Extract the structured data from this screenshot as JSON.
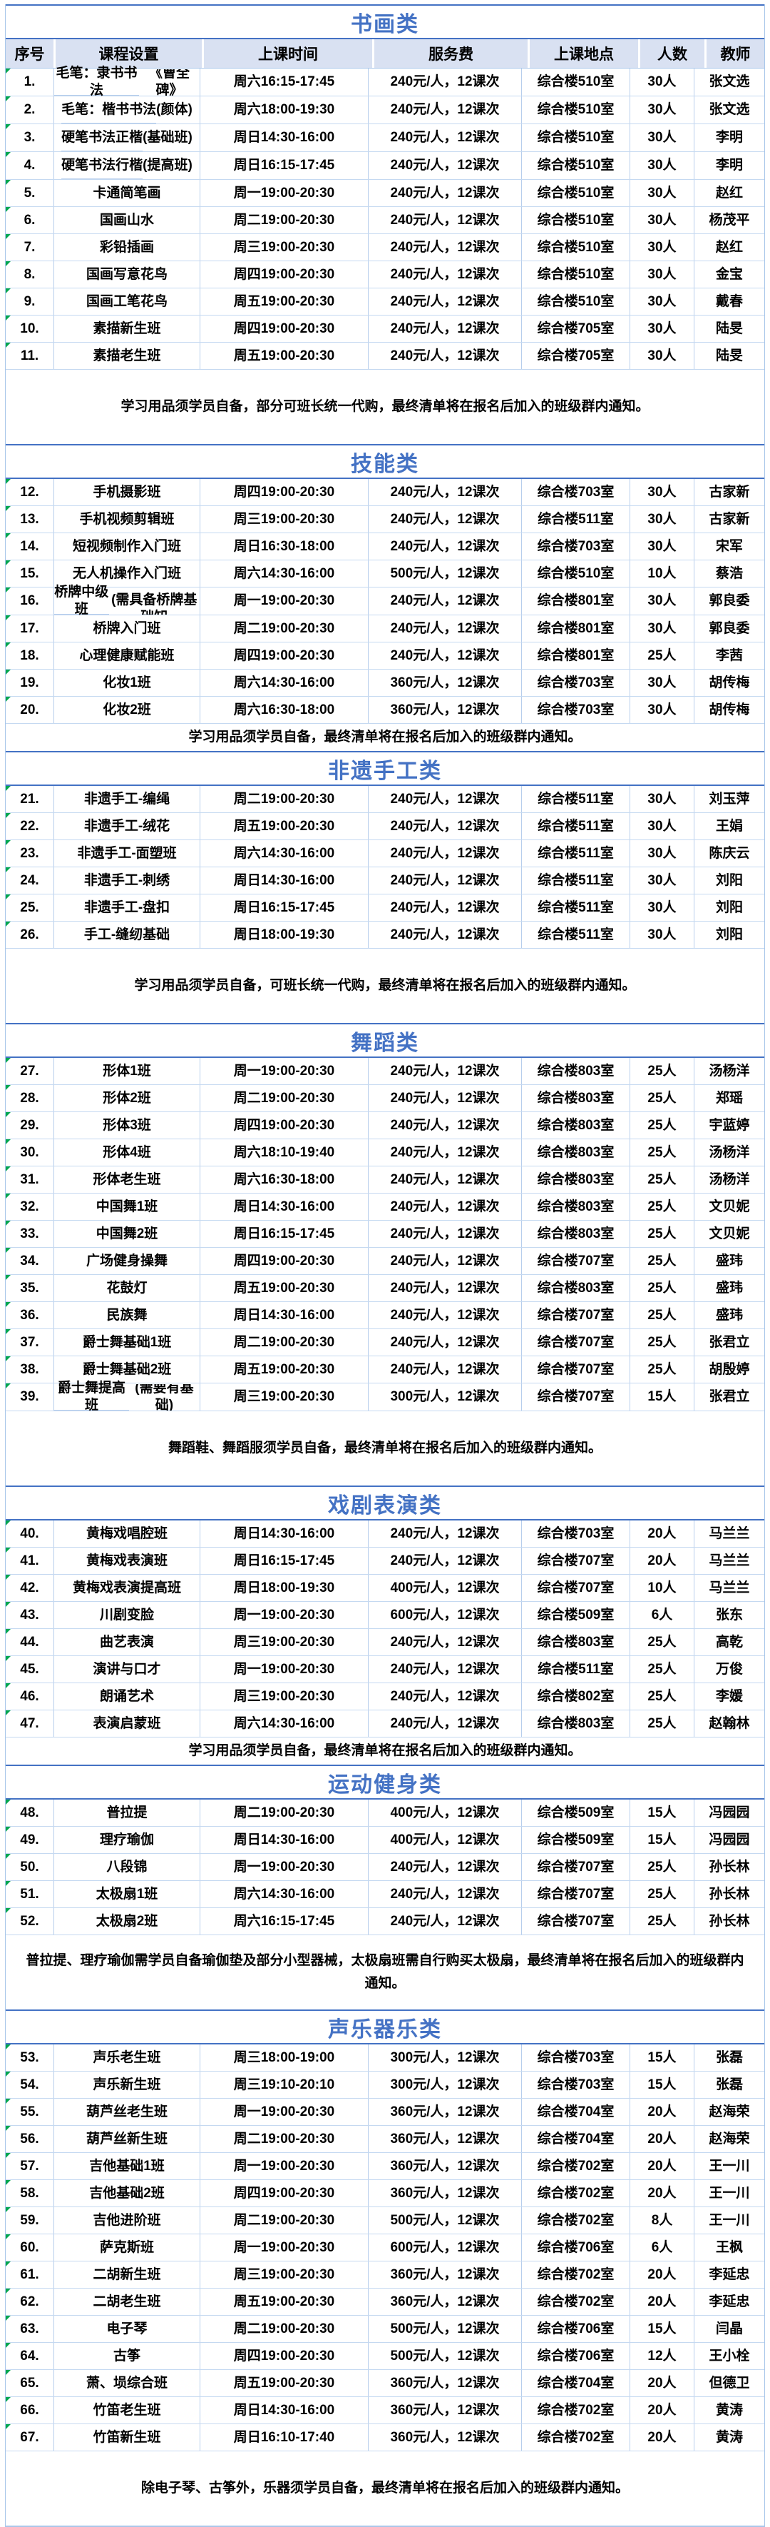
{
  "colors": {
    "accent_blue": "#4472C4",
    "header_bg": "#D9E1F2",
    "grid_line": "#A9C7EA",
    "corner_marker_green": "#00A650"
  },
  "columns": [
    "序号",
    "课程设置",
    "上课时间",
    "服务费",
    "上课地点",
    "人数",
    "教师"
  ],
  "sections": [
    {
      "title": "书画类",
      "show_header": true,
      "note_size": "tall",
      "note": "学习用品须学员自备，部分可班长统一代购，最终清单将在报名后加入的班级群内通知。",
      "rows": [
        {
          "no": "1.",
          "course_lines": [
            "毛笔：隶书书法",
            "《曹全碑》"
          ],
          "time": "周六16:15-17:45",
          "fee": "240元/人，12课次",
          "location": "综合楼510室",
          "capacity": "30人",
          "teacher": "张文选"
        },
        {
          "no": "2.",
          "course_lines": [
            "毛笔：楷书书法",
            "(颜体)"
          ],
          "time": "周六18:00-19:30",
          "fee": "240元/人，12课次",
          "location": "综合楼510室",
          "capacity": "30人",
          "teacher": "张文选"
        },
        {
          "no": "3.",
          "course_lines": [
            "硬笔书法正楷",
            "(基础班)"
          ],
          "time": "周日14:30-16:00",
          "fee": "240元/人，12课次",
          "location": "综合楼510室",
          "capacity": "30人",
          "teacher": "李明"
        },
        {
          "no": "4.",
          "course_lines": [
            "硬笔书法行楷",
            "(提高班)"
          ],
          "time": "周日16:15-17:45",
          "fee": "240元/人，12课次",
          "location": "综合楼510室",
          "capacity": "30人",
          "teacher": "李明"
        },
        {
          "no": "5.",
          "course_lines": [
            "卡通简笔画"
          ],
          "time": "周一19:00-20:30",
          "fee": "240元/人，12课次",
          "location": "综合楼510室",
          "capacity": "30人",
          "teacher": "赵红"
        },
        {
          "no": "6.",
          "course_lines": [
            "国画山水"
          ],
          "time": "周二19:00-20:30",
          "fee": "240元/人，12课次",
          "location": "综合楼510室",
          "capacity": "30人",
          "teacher": "杨茂平"
        },
        {
          "no": "7.",
          "course_lines": [
            "彩铅插画"
          ],
          "time": "周三19:00-20:30",
          "fee": "240元/人，12课次",
          "location": "综合楼510室",
          "capacity": "30人",
          "teacher": "赵红"
        },
        {
          "no": "8.",
          "course_lines": [
            "国画写意花鸟"
          ],
          "time": "周四19:00-20:30",
          "fee": "240元/人，12课次",
          "location": "综合楼510室",
          "capacity": "30人",
          "teacher": "金宝"
        },
        {
          "no": "9.",
          "course_lines": [
            "国画工笔花鸟"
          ],
          "time": "周五19:00-20:30",
          "fee": "240元/人，12课次",
          "location": "综合楼510室",
          "capacity": "30人",
          "teacher": "戴春"
        },
        {
          "no": "10.",
          "course_lines": [
            "素描新生班"
          ],
          "time": "周四19:00-20:30",
          "fee": "240元/人，12课次",
          "location": "综合楼705室",
          "capacity": "30人",
          "teacher": "陆旻"
        },
        {
          "no": "11.",
          "course_lines": [
            "素描老生班"
          ],
          "time": "周五19:00-20:30",
          "fee": "240元/人，12课次",
          "location": "综合楼705室",
          "capacity": "30人",
          "teacher": "陆旻"
        }
      ]
    },
    {
      "title": "技能类",
      "show_header": false,
      "note_size": "short",
      "note": "学习用品须学员自备，最终清单将在报名后加入的班级群内通知。",
      "rows": [
        {
          "no": "12.",
          "course_lines": [
            "手机摄影班"
          ],
          "time": "周四19:00-20:30",
          "fee": "240元/人，12课次",
          "location": "综合楼703室",
          "capacity": "30人",
          "teacher": "古家新"
        },
        {
          "no": "13.",
          "course_lines": [
            "手机视频剪辑班"
          ],
          "time": "周三19:00-20:30",
          "fee": "240元/人，12课次",
          "location": "综合楼511室",
          "capacity": "30人",
          "teacher": "古家新"
        },
        {
          "no": "14.",
          "course_lines": [
            "短视频制作入门班"
          ],
          "time": "周日16:30-18:00",
          "fee": "240元/人，12课次",
          "location": "综合楼703室",
          "capacity": "30人",
          "teacher": "宋军"
        },
        {
          "no": "15.",
          "course_lines": [
            "无人机操作入门班"
          ],
          "time": "周六14:30-16:00",
          "fee": "500元/人，12课次",
          "location": "综合楼510室",
          "capacity": "10人",
          "teacher": "蔡浩"
        },
        {
          "no": "16.",
          "course_lines": [
            "桥牌中级班",
            "(需具备桥牌基础知",
            "识)"
          ],
          "time": "周一19:00-20:30",
          "fee": "240元/人，12课次",
          "location": "综合楼801室",
          "capacity": "30人",
          "teacher": "郭良委"
        },
        {
          "no": "17.",
          "course_lines": [
            "桥牌入门班"
          ],
          "time": "周二19:00-20:30",
          "fee": "240元/人，12课次",
          "location": "综合楼801室",
          "capacity": "30人",
          "teacher": "郭良委"
        },
        {
          "no": "18.",
          "course_lines": [
            "心理健康赋能班"
          ],
          "time": "周四19:00-20:30",
          "fee": "240元/人，12课次",
          "location": "综合楼801室",
          "capacity": "25人",
          "teacher": "李茜"
        },
        {
          "no": "19.",
          "course_lines": [
            "化妆1班"
          ],
          "time": "周六14:30-16:00",
          "fee": "360元/人，12课次",
          "location": "综合楼703室",
          "capacity": "30人",
          "teacher": "胡传梅"
        },
        {
          "no": "20.",
          "course_lines": [
            "化妆2班"
          ],
          "time": "周六16:30-18:00",
          "fee": "360元/人，12课次",
          "location": "综合楼703室",
          "capacity": "30人",
          "teacher": "胡传梅"
        }
      ]
    },
    {
      "title": "非遗手工类",
      "show_header": false,
      "note_size": "tall",
      "note": "学习用品须学员自备，可班长统一代购，最终清单将在报名后加入的班级群内通知。",
      "rows": [
        {
          "no": "21.",
          "course_lines": [
            "非遗手工-编绳"
          ],
          "time": "周二19:00-20:30",
          "fee": "240元/人，12课次",
          "location": "综合楼511室",
          "capacity": "30人",
          "teacher": "刘玉萍"
        },
        {
          "no": "22.",
          "course_lines": [
            "非遗手工-绒花"
          ],
          "time": "周五19:00-20:30",
          "fee": "240元/人，12课次",
          "location": "综合楼511室",
          "capacity": "30人",
          "teacher": "王娟"
        },
        {
          "no": "23.",
          "course_lines": [
            "非遗手工-面塑班"
          ],
          "time": "周六14:30-16:00",
          "fee": "240元/人，12课次",
          "location": "综合楼511室",
          "capacity": "30人",
          "teacher": "陈庆云"
        },
        {
          "no": "24.",
          "course_lines": [
            "非遗手工-刺绣"
          ],
          "time": "周日14:30-16:00",
          "fee": "240元/人，12课次",
          "location": "综合楼511室",
          "capacity": "30人",
          "teacher": "刘阳"
        },
        {
          "no": "25.",
          "course_lines": [
            "非遗手工-盘扣"
          ],
          "time": "周日16:15-17:45",
          "fee": "240元/人，12课次",
          "location": "综合楼511室",
          "capacity": "30人",
          "teacher": "刘阳"
        },
        {
          "no": "26.",
          "course_lines": [
            "手工-缝纫基础"
          ],
          "time": "周日18:00-19:30",
          "fee": "240元/人，12课次",
          "location": "综合楼511室",
          "capacity": "30人",
          "teacher": "刘阳"
        }
      ]
    },
    {
      "title": "舞蹈类",
      "show_header": false,
      "note_size": "tall",
      "note": "舞蹈鞋、舞蹈服须学员自备，最终清单将在报名后加入的班级群内通知。",
      "rows": [
        {
          "no": "27.",
          "course_lines": [
            "形体1班"
          ],
          "time": "周一19:00-20:30",
          "fee": "240元/人，12课次",
          "location": "综合楼803室",
          "capacity": "25人",
          "teacher": "汤杨洋"
        },
        {
          "no": "28.",
          "course_lines": [
            "形体2班"
          ],
          "time": "周二19:00-20:30",
          "fee": "240元/人，12课次",
          "location": "综合楼803室",
          "capacity": "25人",
          "teacher": "郑瑶"
        },
        {
          "no": "29.",
          "course_lines": [
            "形体3班"
          ],
          "time": "周四19:00-20:30",
          "fee": "240元/人，12课次",
          "location": "综合楼803室",
          "capacity": "25人",
          "teacher": "宇蓝婷"
        },
        {
          "no": "30.",
          "course_lines": [
            "形体4班"
          ],
          "time": "周六18:10-19:40",
          "fee": "240元/人，12课次",
          "location": "综合楼803室",
          "capacity": "25人",
          "teacher": "汤杨洋"
        },
        {
          "no": "31.",
          "course_lines": [
            "形体老生班"
          ],
          "time": "周六16:30-18:00",
          "fee": "240元/人，12课次",
          "location": "综合楼803室",
          "capacity": "25人",
          "teacher": "汤杨洋"
        },
        {
          "no": "32.",
          "course_lines": [
            "中国舞1班"
          ],
          "time": "周日14:30-16:00",
          "fee": "240元/人，12课次",
          "location": "综合楼803室",
          "capacity": "25人",
          "teacher": "文贝妮"
        },
        {
          "no": "33.",
          "course_lines": [
            "中国舞2班"
          ],
          "time": "周日16:15-17:45",
          "fee": "240元/人，12课次",
          "location": "综合楼803室",
          "capacity": "25人",
          "teacher": "文贝妮"
        },
        {
          "no": "34.",
          "course_lines": [
            "广场健身操舞"
          ],
          "time": "周四19:00-20:30",
          "fee": "240元/人，12课次",
          "location": "综合楼707室",
          "capacity": "25人",
          "teacher": "盛玮"
        },
        {
          "no": "35.",
          "course_lines": [
            "花鼓灯"
          ],
          "time": "周五19:00-20:30",
          "fee": "240元/人，12课次",
          "location": "综合楼803室",
          "capacity": "25人",
          "teacher": "盛玮"
        },
        {
          "no": "36.",
          "course_lines": [
            "民族舞"
          ],
          "time": "周日14:30-16:00",
          "fee": "240元/人，12课次",
          "location": "综合楼707室",
          "capacity": "25人",
          "teacher": "盛玮"
        },
        {
          "no": "37.",
          "course_lines": [
            "爵士舞基础1班"
          ],
          "time": "周二19:00-20:30",
          "fee": "240元/人，12课次",
          "location": "综合楼707室",
          "capacity": "25人",
          "teacher": "张君立"
        },
        {
          "no": "38.",
          "course_lines": [
            "爵士舞基础2班"
          ],
          "time": "周五19:00-20:30",
          "fee": "240元/人，12课次",
          "location": "综合楼707室",
          "capacity": "25人",
          "teacher": "胡殷婷"
        },
        {
          "no": "39.",
          "course_lines": [
            "爵士舞提高班",
            "(需要有基础)"
          ],
          "time": "周三19:00-20:30",
          "fee": "300元/人，12课次",
          "location": "综合楼707室",
          "capacity": "15人",
          "teacher": "张君立"
        }
      ]
    },
    {
      "title": "戏剧表演类",
      "show_header": false,
      "note_size": "short",
      "note": "学习用品须学员自备，最终清单将在报名后加入的班级群内通知。",
      "rows": [
        {
          "no": "40.",
          "course_lines": [
            "黄梅戏唱腔班"
          ],
          "time": "周日14:30-16:00",
          "fee": "240元/人，12课次",
          "location": "综合楼703室",
          "capacity": "20人",
          "teacher": "马兰兰"
        },
        {
          "no": "41.",
          "course_lines": [
            "黄梅戏表演班"
          ],
          "time": "周日16:15-17:45",
          "fee": "240元/人，12课次",
          "location": "综合楼707室",
          "capacity": "20人",
          "teacher": "马兰兰"
        },
        {
          "no": "42.",
          "course_lines": [
            "黄梅戏表演提高班"
          ],
          "time": "周日18:00-19:30",
          "fee": "400元/人，12课次",
          "location": "综合楼707室",
          "capacity": "10人",
          "teacher": "马兰兰"
        },
        {
          "no": "43.",
          "course_lines": [
            "川剧变脸"
          ],
          "time": "周一19:00-20:30",
          "fee": "600元/人，12课次",
          "location": "综合楼509室",
          "capacity": "6人",
          "teacher": "张东"
        },
        {
          "no": "44.",
          "course_lines": [
            "曲艺表演"
          ],
          "time": "周三19:00-20:30",
          "fee": "240元/人，12课次",
          "location": "综合楼803室",
          "capacity": "25人",
          "teacher": "高乾"
        },
        {
          "no": "45.",
          "course_lines": [
            "演讲与口才"
          ],
          "time": "周一19:00-20:30",
          "fee": "240元/人，12课次",
          "location": "综合楼511室",
          "capacity": "25人",
          "teacher": "万俊"
        },
        {
          "no": "46.",
          "course_lines": [
            "朗诵艺术"
          ],
          "time": "周三19:00-20:30",
          "fee": "240元/人，12课次",
          "location": "综合楼802室",
          "capacity": "25人",
          "teacher": "李媛"
        },
        {
          "no": "47.",
          "course_lines": [
            "表演启蒙班"
          ],
          "time": "周六14:30-16:00",
          "fee": "240元/人，12课次",
          "location": "综合楼803室",
          "capacity": "25人",
          "teacher": "赵翰林"
        }
      ]
    },
    {
      "title": "运动健身类",
      "show_header": false,
      "note_size": "tall",
      "note": "普拉提、理疗瑜伽需学员自备瑜伽垫及部分小型器械，太极扇班需自行购买太极扇，最终清单将在报名后加入的班级群内通知。",
      "rows": [
        {
          "no": "48.",
          "course_lines": [
            "普拉提"
          ],
          "time": "周二19:00-20:30",
          "fee": "400元/人，12课次",
          "location": "综合楼509室",
          "capacity": "15人",
          "teacher": "冯园园"
        },
        {
          "no": "49.",
          "course_lines": [
            "理疗瑜伽"
          ],
          "time": "周日14:30-16:00",
          "fee": "400元/人，12课次",
          "location": "综合楼509室",
          "capacity": "15人",
          "teacher": "冯园园"
        },
        {
          "no": "50.",
          "course_lines": [
            "八段锦"
          ],
          "time": "周一19:00-20:30",
          "fee": "240元/人，12课次",
          "location": "综合楼707室",
          "capacity": "25人",
          "teacher": "孙长林"
        },
        {
          "no": "51.",
          "course_lines": [
            "太极扇1班"
          ],
          "time": "周六14:30-16:00",
          "fee": "240元/人，12课次",
          "location": "综合楼707室",
          "capacity": "25人",
          "teacher": "孙长林"
        },
        {
          "no": "52.",
          "course_lines": [
            "太极扇2班"
          ],
          "time": "周六16:15-17:45",
          "fee": "240元/人，12课次",
          "location": "综合楼707室",
          "capacity": "25人",
          "teacher": "孙长林"
        }
      ]
    },
    {
      "title": "声乐器乐类",
      "show_header": false,
      "note_size": "tall",
      "note": "除电子琴、古筝外，乐器须学员自备，最终清单将在报名后加入的班级群内通知。",
      "rows": [
        {
          "no": "53.",
          "course_lines": [
            "声乐老生班"
          ],
          "time": "周三18:00-19:00",
          "fee": "300元/人，12课次",
          "location": "综合楼703室",
          "capacity": "15人",
          "teacher": "张磊"
        },
        {
          "no": "54.",
          "course_lines": [
            "声乐新生班"
          ],
          "time": "周三19:10-20:10",
          "fee": "300元/人，12课次",
          "location": "综合楼703室",
          "capacity": "15人",
          "teacher": "张磊"
        },
        {
          "no": "55.",
          "course_lines": [
            "葫芦丝老生班"
          ],
          "time": "周一19:00-20:30",
          "fee": "360元/人，12课次",
          "location": "综合楼704室",
          "capacity": "20人",
          "teacher": "赵海荣"
        },
        {
          "no": "56.",
          "course_lines": [
            "葫芦丝新生班"
          ],
          "time": "周二19:00-20:30",
          "fee": "360元/人，12课次",
          "location": "综合楼704室",
          "capacity": "20人",
          "teacher": "赵海荣"
        },
        {
          "no": "57.",
          "course_lines": [
            "吉他基础1班"
          ],
          "time": "周一19:00-20:30",
          "fee": "360元/人，12课次",
          "location": "综合楼702室",
          "capacity": "20人",
          "teacher": "王一川"
        },
        {
          "no": "58.",
          "course_lines": [
            "吉他基础2班"
          ],
          "time": "周四19:00-20:30",
          "fee": "360元/人，12课次",
          "location": "综合楼702室",
          "capacity": "20人",
          "teacher": "王一川"
        },
        {
          "no": "59.",
          "course_lines": [
            "吉他进阶班"
          ],
          "time": "周二19:00-20:30",
          "fee": "500元/人，12课次",
          "location": "综合楼702室",
          "capacity": "8人",
          "teacher": "王一川"
        },
        {
          "no": "60.",
          "course_lines": [
            "萨克斯班"
          ],
          "time": "周一19:00-20:30",
          "fee": "600元/人，12课次",
          "location": "综合楼706室",
          "capacity": "6人",
          "teacher": "王枫"
        },
        {
          "no": "61.",
          "course_lines": [
            "二胡新生班"
          ],
          "time": "周三19:00-20:30",
          "fee": "360元/人，12课次",
          "location": "综合楼702室",
          "capacity": "20人",
          "teacher": "李延忠"
        },
        {
          "no": "62.",
          "course_lines": [
            "二胡老生班"
          ],
          "time": "周五19:00-20:30",
          "fee": "360元/人，12课次",
          "location": "综合楼702室",
          "capacity": "20人",
          "teacher": "李延忠"
        },
        {
          "no": "63.",
          "course_lines": [
            "电子琴"
          ],
          "time": "周二19:00-20:30",
          "fee": "500元/人，12课次",
          "location": "综合楼706室",
          "capacity": "15人",
          "teacher": "闫晶"
        },
        {
          "no": "64.",
          "course_lines": [
            "古筝"
          ],
          "time": "周四19:00-20:30",
          "fee": "500元/人，12课次",
          "location": "综合楼706室",
          "capacity": "12人",
          "teacher": "王小栓"
        },
        {
          "no": "65.",
          "course_lines": [
            "萧、埙综合班"
          ],
          "time": "周五19:00-20:30",
          "fee": "360元/人，12课次",
          "location": "综合楼704室",
          "capacity": "20人",
          "teacher": "但德卫"
        },
        {
          "no": "66.",
          "course_lines": [
            "竹笛老生班"
          ],
          "time": "周日14:30-16:00",
          "fee": "360元/人，12课次",
          "location": "综合楼702室",
          "capacity": "20人",
          "teacher": "黄涛"
        },
        {
          "no": "67.",
          "course_lines": [
            "竹笛新生班"
          ],
          "time": "周日16:10-17:40",
          "fee": "360元/人，12课次",
          "location": "综合楼702室",
          "capacity": "20人",
          "teacher": "黄涛"
        }
      ]
    }
  ]
}
